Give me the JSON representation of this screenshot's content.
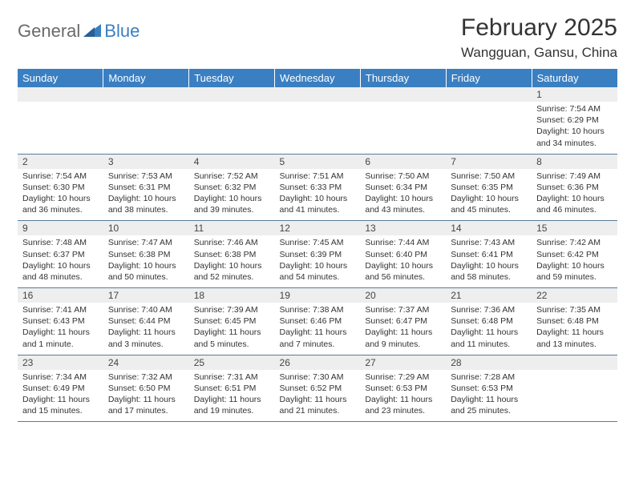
{
  "logo": {
    "text1": "General",
    "text2": "Blue"
  },
  "title": "February 2025",
  "subtitle": "Wangguan, Gansu, China",
  "header_bg": "#3a7fc2",
  "header_fg": "#ffffff",
  "daynum_bg": "#eeeeee",
  "border_color": "#5a7a9a",
  "text_color": "#333333",
  "font_family": "Arial, Helvetica, sans-serif",
  "day_headers": [
    "Sunday",
    "Monday",
    "Tuesday",
    "Wednesday",
    "Thursday",
    "Friday",
    "Saturday"
  ],
  "weeks": [
    {
      "nums": [
        "",
        "",
        "",
        "",
        "",
        "",
        "1"
      ],
      "cells": [
        null,
        null,
        null,
        null,
        null,
        null,
        {
          "sunrise": "Sunrise: 7:54 AM",
          "sunset": "Sunset: 6:29 PM",
          "daylight": "Daylight: 10 hours and 34 minutes."
        }
      ]
    },
    {
      "nums": [
        "2",
        "3",
        "4",
        "5",
        "6",
        "7",
        "8"
      ],
      "cells": [
        {
          "sunrise": "Sunrise: 7:54 AM",
          "sunset": "Sunset: 6:30 PM",
          "daylight": "Daylight: 10 hours and 36 minutes."
        },
        {
          "sunrise": "Sunrise: 7:53 AM",
          "sunset": "Sunset: 6:31 PM",
          "daylight": "Daylight: 10 hours and 38 minutes."
        },
        {
          "sunrise": "Sunrise: 7:52 AM",
          "sunset": "Sunset: 6:32 PM",
          "daylight": "Daylight: 10 hours and 39 minutes."
        },
        {
          "sunrise": "Sunrise: 7:51 AM",
          "sunset": "Sunset: 6:33 PM",
          "daylight": "Daylight: 10 hours and 41 minutes."
        },
        {
          "sunrise": "Sunrise: 7:50 AM",
          "sunset": "Sunset: 6:34 PM",
          "daylight": "Daylight: 10 hours and 43 minutes."
        },
        {
          "sunrise": "Sunrise: 7:50 AM",
          "sunset": "Sunset: 6:35 PM",
          "daylight": "Daylight: 10 hours and 45 minutes."
        },
        {
          "sunrise": "Sunrise: 7:49 AM",
          "sunset": "Sunset: 6:36 PM",
          "daylight": "Daylight: 10 hours and 46 minutes."
        }
      ]
    },
    {
      "nums": [
        "9",
        "10",
        "11",
        "12",
        "13",
        "14",
        "15"
      ],
      "cells": [
        {
          "sunrise": "Sunrise: 7:48 AM",
          "sunset": "Sunset: 6:37 PM",
          "daylight": "Daylight: 10 hours and 48 minutes."
        },
        {
          "sunrise": "Sunrise: 7:47 AM",
          "sunset": "Sunset: 6:38 PM",
          "daylight": "Daylight: 10 hours and 50 minutes."
        },
        {
          "sunrise": "Sunrise: 7:46 AM",
          "sunset": "Sunset: 6:38 PM",
          "daylight": "Daylight: 10 hours and 52 minutes."
        },
        {
          "sunrise": "Sunrise: 7:45 AM",
          "sunset": "Sunset: 6:39 PM",
          "daylight": "Daylight: 10 hours and 54 minutes."
        },
        {
          "sunrise": "Sunrise: 7:44 AM",
          "sunset": "Sunset: 6:40 PM",
          "daylight": "Daylight: 10 hours and 56 minutes."
        },
        {
          "sunrise": "Sunrise: 7:43 AM",
          "sunset": "Sunset: 6:41 PM",
          "daylight": "Daylight: 10 hours and 58 minutes."
        },
        {
          "sunrise": "Sunrise: 7:42 AM",
          "sunset": "Sunset: 6:42 PM",
          "daylight": "Daylight: 10 hours and 59 minutes."
        }
      ]
    },
    {
      "nums": [
        "16",
        "17",
        "18",
        "19",
        "20",
        "21",
        "22"
      ],
      "cells": [
        {
          "sunrise": "Sunrise: 7:41 AM",
          "sunset": "Sunset: 6:43 PM",
          "daylight": "Daylight: 11 hours and 1 minute."
        },
        {
          "sunrise": "Sunrise: 7:40 AM",
          "sunset": "Sunset: 6:44 PM",
          "daylight": "Daylight: 11 hours and 3 minutes."
        },
        {
          "sunrise": "Sunrise: 7:39 AM",
          "sunset": "Sunset: 6:45 PM",
          "daylight": "Daylight: 11 hours and 5 minutes."
        },
        {
          "sunrise": "Sunrise: 7:38 AM",
          "sunset": "Sunset: 6:46 PM",
          "daylight": "Daylight: 11 hours and 7 minutes."
        },
        {
          "sunrise": "Sunrise: 7:37 AM",
          "sunset": "Sunset: 6:47 PM",
          "daylight": "Daylight: 11 hours and 9 minutes."
        },
        {
          "sunrise": "Sunrise: 7:36 AM",
          "sunset": "Sunset: 6:48 PM",
          "daylight": "Daylight: 11 hours and 11 minutes."
        },
        {
          "sunrise": "Sunrise: 7:35 AM",
          "sunset": "Sunset: 6:48 PM",
          "daylight": "Daylight: 11 hours and 13 minutes."
        }
      ]
    },
    {
      "nums": [
        "23",
        "24",
        "25",
        "26",
        "27",
        "28",
        ""
      ],
      "cells": [
        {
          "sunrise": "Sunrise: 7:34 AM",
          "sunset": "Sunset: 6:49 PM",
          "daylight": "Daylight: 11 hours and 15 minutes."
        },
        {
          "sunrise": "Sunrise: 7:32 AM",
          "sunset": "Sunset: 6:50 PM",
          "daylight": "Daylight: 11 hours and 17 minutes."
        },
        {
          "sunrise": "Sunrise: 7:31 AM",
          "sunset": "Sunset: 6:51 PM",
          "daylight": "Daylight: 11 hours and 19 minutes."
        },
        {
          "sunrise": "Sunrise: 7:30 AM",
          "sunset": "Sunset: 6:52 PM",
          "daylight": "Daylight: 11 hours and 21 minutes."
        },
        {
          "sunrise": "Sunrise: 7:29 AM",
          "sunset": "Sunset: 6:53 PM",
          "daylight": "Daylight: 11 hours and 23 minutes."
        },
        {
          "sunrise": "Sunrise: 7:28 AM",
          "sunset": "Sunset: 6:53 PM",
          "daylight": "Daylight: 11 hours and 25 minutes."
        },
        null
      ]
    }
  ]
}
